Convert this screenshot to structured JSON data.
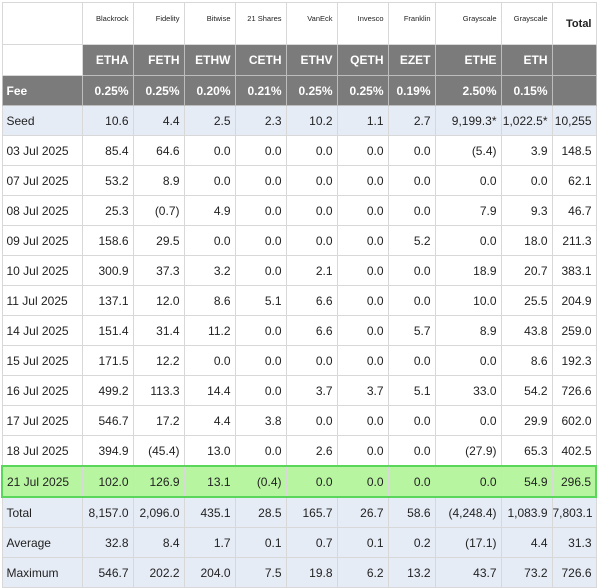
{
  "columns": {
    "issuers": [
      "Blackrock",
      "Fidelity",
      "Bitwise",
      "21 Shares",
      "VanEck",
      "Invesco",
      "Franklin",
      "Grayscale",
      "Grayscale"
    ],
    "total_label": "Total",
    "tickers": [
      "ETHA",
      "FETH",
      "ETHW",
      "CETH",
      "ETHV",
      "QETH",
      "EZET",
      "ETHE",
      "ETH"
    ],
    "fee_label": "Fee",
    "fees": [
      "0.25%",
      "0.25%",
      "0.20%",
      "0.21%",
      "0.25%",
      "0.25%",
      "0.19%",
      "2.50%",
      "0.15%"
    ]
  },
  "seed": {
    "label": "Seed",
    "values": [
      "10.6",
      "4.4",
      "2.5",
      "2.3",
      "10.2",
      "1.1",
      "2.7",
      "9,199.3*",
      "1,022.5*",
      "10,255"
    ]
  },
  "rows": [
    {
      "date": "03 Jul 2025",
      "values": [
        "85.4",
        "64.6",
        "0.0",
        "0.0",
        "0.0",
        "0.0",
        "0.0",
        "(5.4)",
        "3.9",
        "148.5"
      ]
    },
    {
      "date": "07 Jul 2025",
      "values": [
        "53.2",
        "8.9",
        "0.0",
        "0.0",
        "0.0",
        "0.0",
        "0.0",
        "0.0",
        "0.0",
        "62.1"
      ]
    },
    {
      "date": "08 Jul 2025",
      "values": [
        "25.3",
        "(0.7)",
        "4.9",
        "0.0",
        "0.0",
        "0.0",
        "0.0",
        "7.9",
        "9.3",
        "46.7"
      ]
    },
    {
      "date": "09 Jul 2025",
      "values": [
        "158.6",
        "29.5",
        "0.0",
        "0.0",
        "0.0",
        "0.0",
        "5.2",
        "0.0",
        "18.0",
        "211.3"
      ]
    },
    {
      "date": "10 Jul 2025",
      "values": [
        "300.9",
        "37.3",
        "3.2",
        "0.0",
        "2.1",
        "0.0",
        "0.0",
        "18.9",
        "20.7",
        "383.1"
      ]
    },
    {
      "date": "11 Jul 2025",
      "values": [
        "137.1",
        "12.0",
        "8.6",
        "5.1",
        "6.6",
        "0.0",
        "0.0",
        "10.0",
        "25.5",
        "204.9"
      ]
    },
    {
      "date": "14 Jul 2025",
      "values": [
        "151.4",
        "31.4",
        "11.2",
        "0.0",
        "6.6",
        "0.0",
        "5.7",
        "8.9",
        "43.8",
        "259.0"
      ]
    },
    {
      "date": "15 Jul 2025",
      "values": [
        "171.5",
        "12.2",
        "0.0",
        "0.0",
        "0.0",
        "0.0",
        "0.0",
        "0.0",
        "8.6",
        "192.3"
      ]
    },
    {
      "date": "16 Jul 2025",
      "values": [
        "499.2",
        "113.3",
        "14.4",
        "0.0",
        "3.7",
        "3.7",
        "5.1",
        "33.0",
        "54.2",
        "726.6"
      ]
    },
    {
      "date": "17 Jul 2025",
      "values": [
        "546.7",
        "17.2",
        "4.4",
        "3.8",
        "0.0",
        "0.0",
        "0.0",
        "0.0",
        "29.9",
        "602.0"
      ]
    },
    {
      "date": "18 Jul 2025",
      "values": [
        "394.9",
        "(45.4)",
        "13.0",
        "0.0",
        "2.6",
        "0.0",
        "0.0",
        "(27.9)",
        "65.3",
        "402.5"
      ]
    },
    {
      "date": "21 Jul 2025",
      "values": [
        "102.0",
        "126.9",
        "13.1",
        "(0.4)",
        "0.0",
        "0.0",
        "0.0",
        "0.0",
        "54.9",
        "296.5"
      ]
    }
  ],
  "highlighted_row": "21 Jul 2025",
  "summary": [
    {
      "label": "Total",
      "values": [
        "8,157.0",
        "2,096.0",
        "435.1",
        "28.5",
        "165.7",
        "26.7",
        "58.6",
        "(4,248.4)",
        "1,083.9",
        "7,803.1"
      ]
    },
    {
      "label": "Average",
      "values": [
        "32.8",
        "8.4",
        "1.7",
        "0.1",
        "0.7",
        "0.1",
        "0.2",
        "(17.1)",
        "4.4",
        "31.3"
      ]
    },
    {
      "label": "Maximum",
      "values": [
        "546.7",
        "202.2",
        "204.0",
        "7.5",
        "19.8",
        "6.2",
        "13.2",
        "43.7",
        "73.2",
        "726.6"
      ]
    }
  ],
  "colors": {
    "header_bg": "#7b7b7b",
    "seed_summary_bg": "#e6ecf6",
    "highlight_bg": "#b8f5a0",
    "highlight_border": "#5ad65a",
    "negative": "#e02424"
  }
}
